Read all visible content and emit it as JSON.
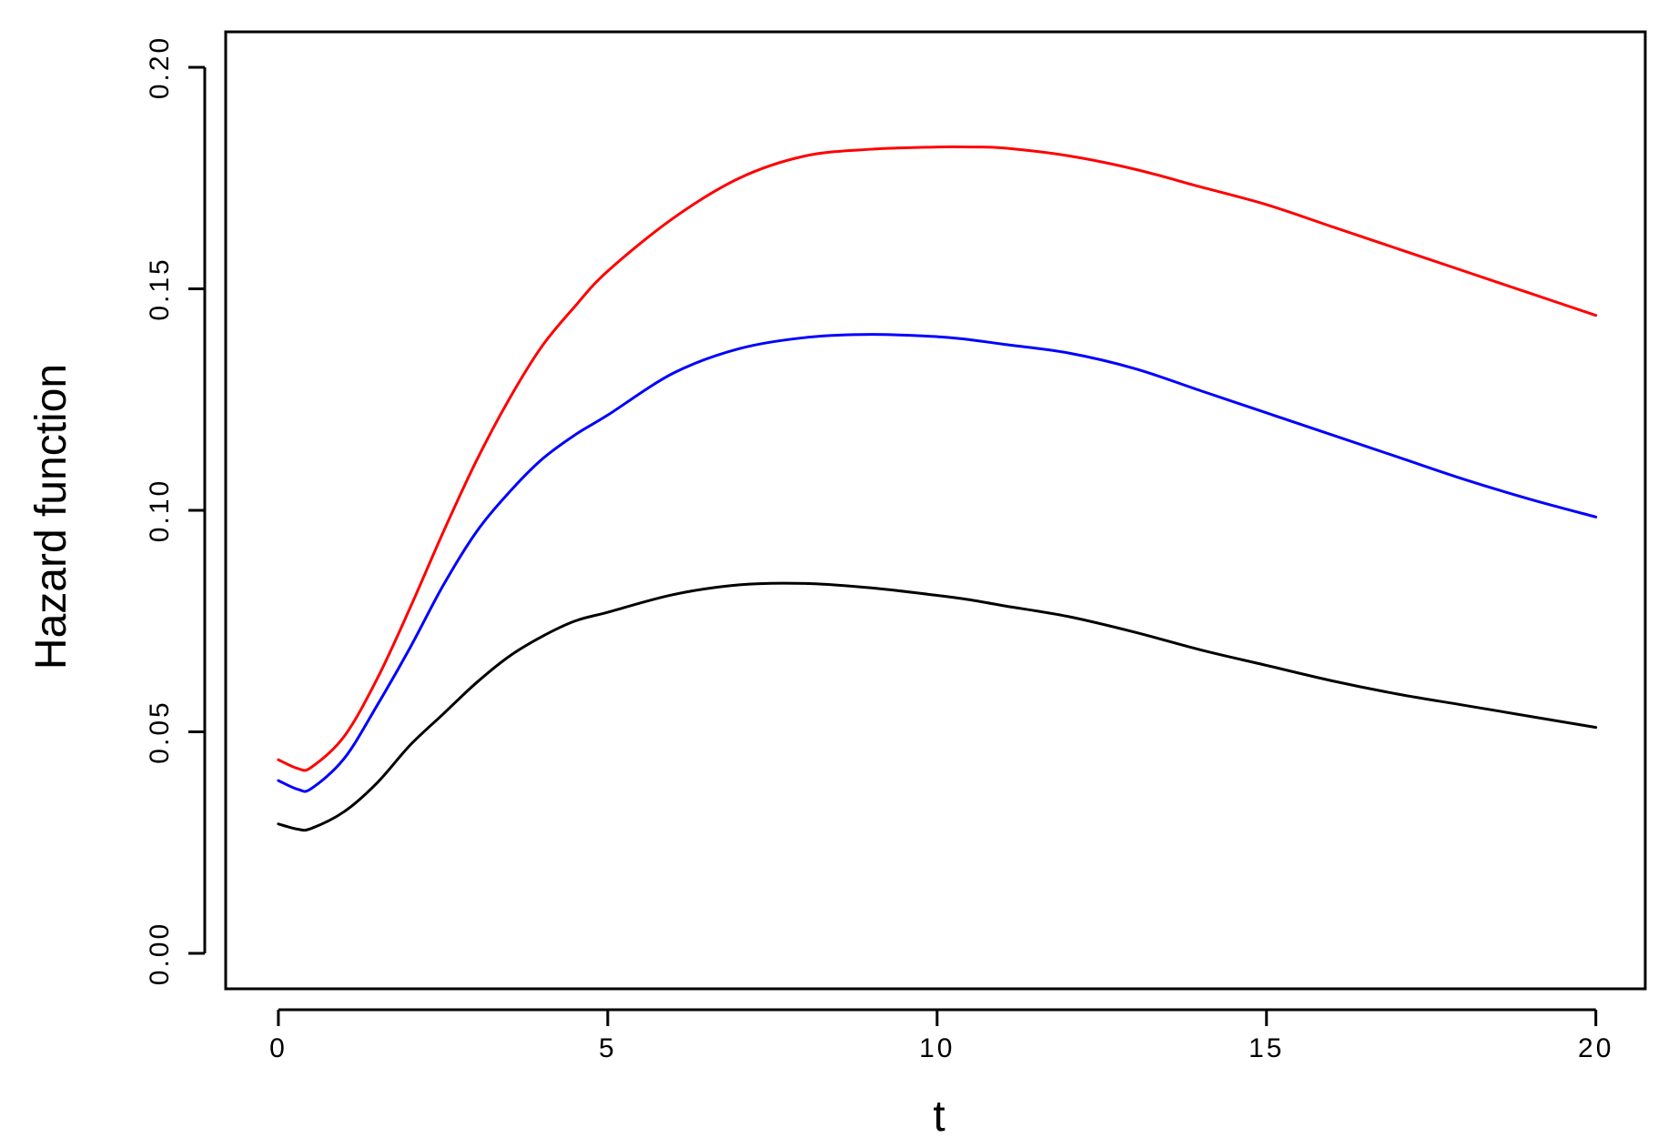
{
  "chart_data": {
    "type": "line",
    "title": "",
    "xlabel": "t",
    "ylabel": "Hazard function",
    "xlim": [
      -0.8,
      20.75
    ],
    "ylim": [
      -0.008,
      0.208
    ],
    "x_ticks": [
      0,
      5,
      10,
      15,
      20
    ],
    "x_tick_labels": [
      "0",
      "5",
      "10",
      "15",
      "20"
    ],
    "y_ticks": [
      0.0,
      0.05,
      0.1,
      0.15,
      0.2
    ],
    "y_tick_labels": [
      "0.00",
      "0.05",
      "0.10",
      "0.15",
      "0.20"
    ],
    "grid": false,
    "legend": "none",
    "x": [
      0,
      0.3,
      0.5,
      1,
      1.5,
      2,
      2.5,
      3,
      3.5,
      4,
      4.5,
      5,
      6,
      7,
      8,
      9,
      10,
      10.5,
      11,
      12,
      13,
      14,
      15,
      16,
      17,
      18,
      19,
      20
    ],
    "series": [
      {
        "color": "#ff0000",
        "values": [
          0.0437,
          0.0417,
          0.042,
          0.049,
          0.062,
          0.078,
          0.095,
          0.111,
          0.125,
          0.137,
          0.146,
          0.154,
          0.166,
          0.175,
          0.18,
          0.1815,
          0.182,
          0.182,
          0.1818,
          0.18,
          0.177,
          0.173,
          0.169,
          0.164,
          0.159,
          0.154,
          0.149,
          0.144
        ]
      },
      {
        "color": "#0000ff",
        "values": [
          0.039,
          0.037,
          0.0372,
          0.044,
          0.056,
          0.069,
          0.083,
          0.095,
          0.104,
          0.1115,
          0.117,
          0.1215,
          0.131,
          0.1365,
          0.139,
          0.1397,
          0.1392,
          0.1385,
          0.1375,
          0.1355,
          0.132,
          0.127,
          0.122,
          0.117,
          0.112,
          0.107,
          0.1025,
          0.0985
        ]
      },
      {
        "color": "#000000",
        "values": [
          0.0292,
          0.028,
          0.0282,
          0.032,
          0.0385,
          0.047,
          0.054,
          0.061,
          0.067,
          0.0715,
          0.075,
          0.077,
          0.081,
          0.0832,
          0.0835,
          0.0825,
          0.0808,
          0.0798,
          0.0785,
          0.076,
          0.0725,
          0.0685,
          0.065,
          0.0615,
          0.0585,
          0.056,
          0.0535,
          0.051
        ]
      }
    ]
  }
}
